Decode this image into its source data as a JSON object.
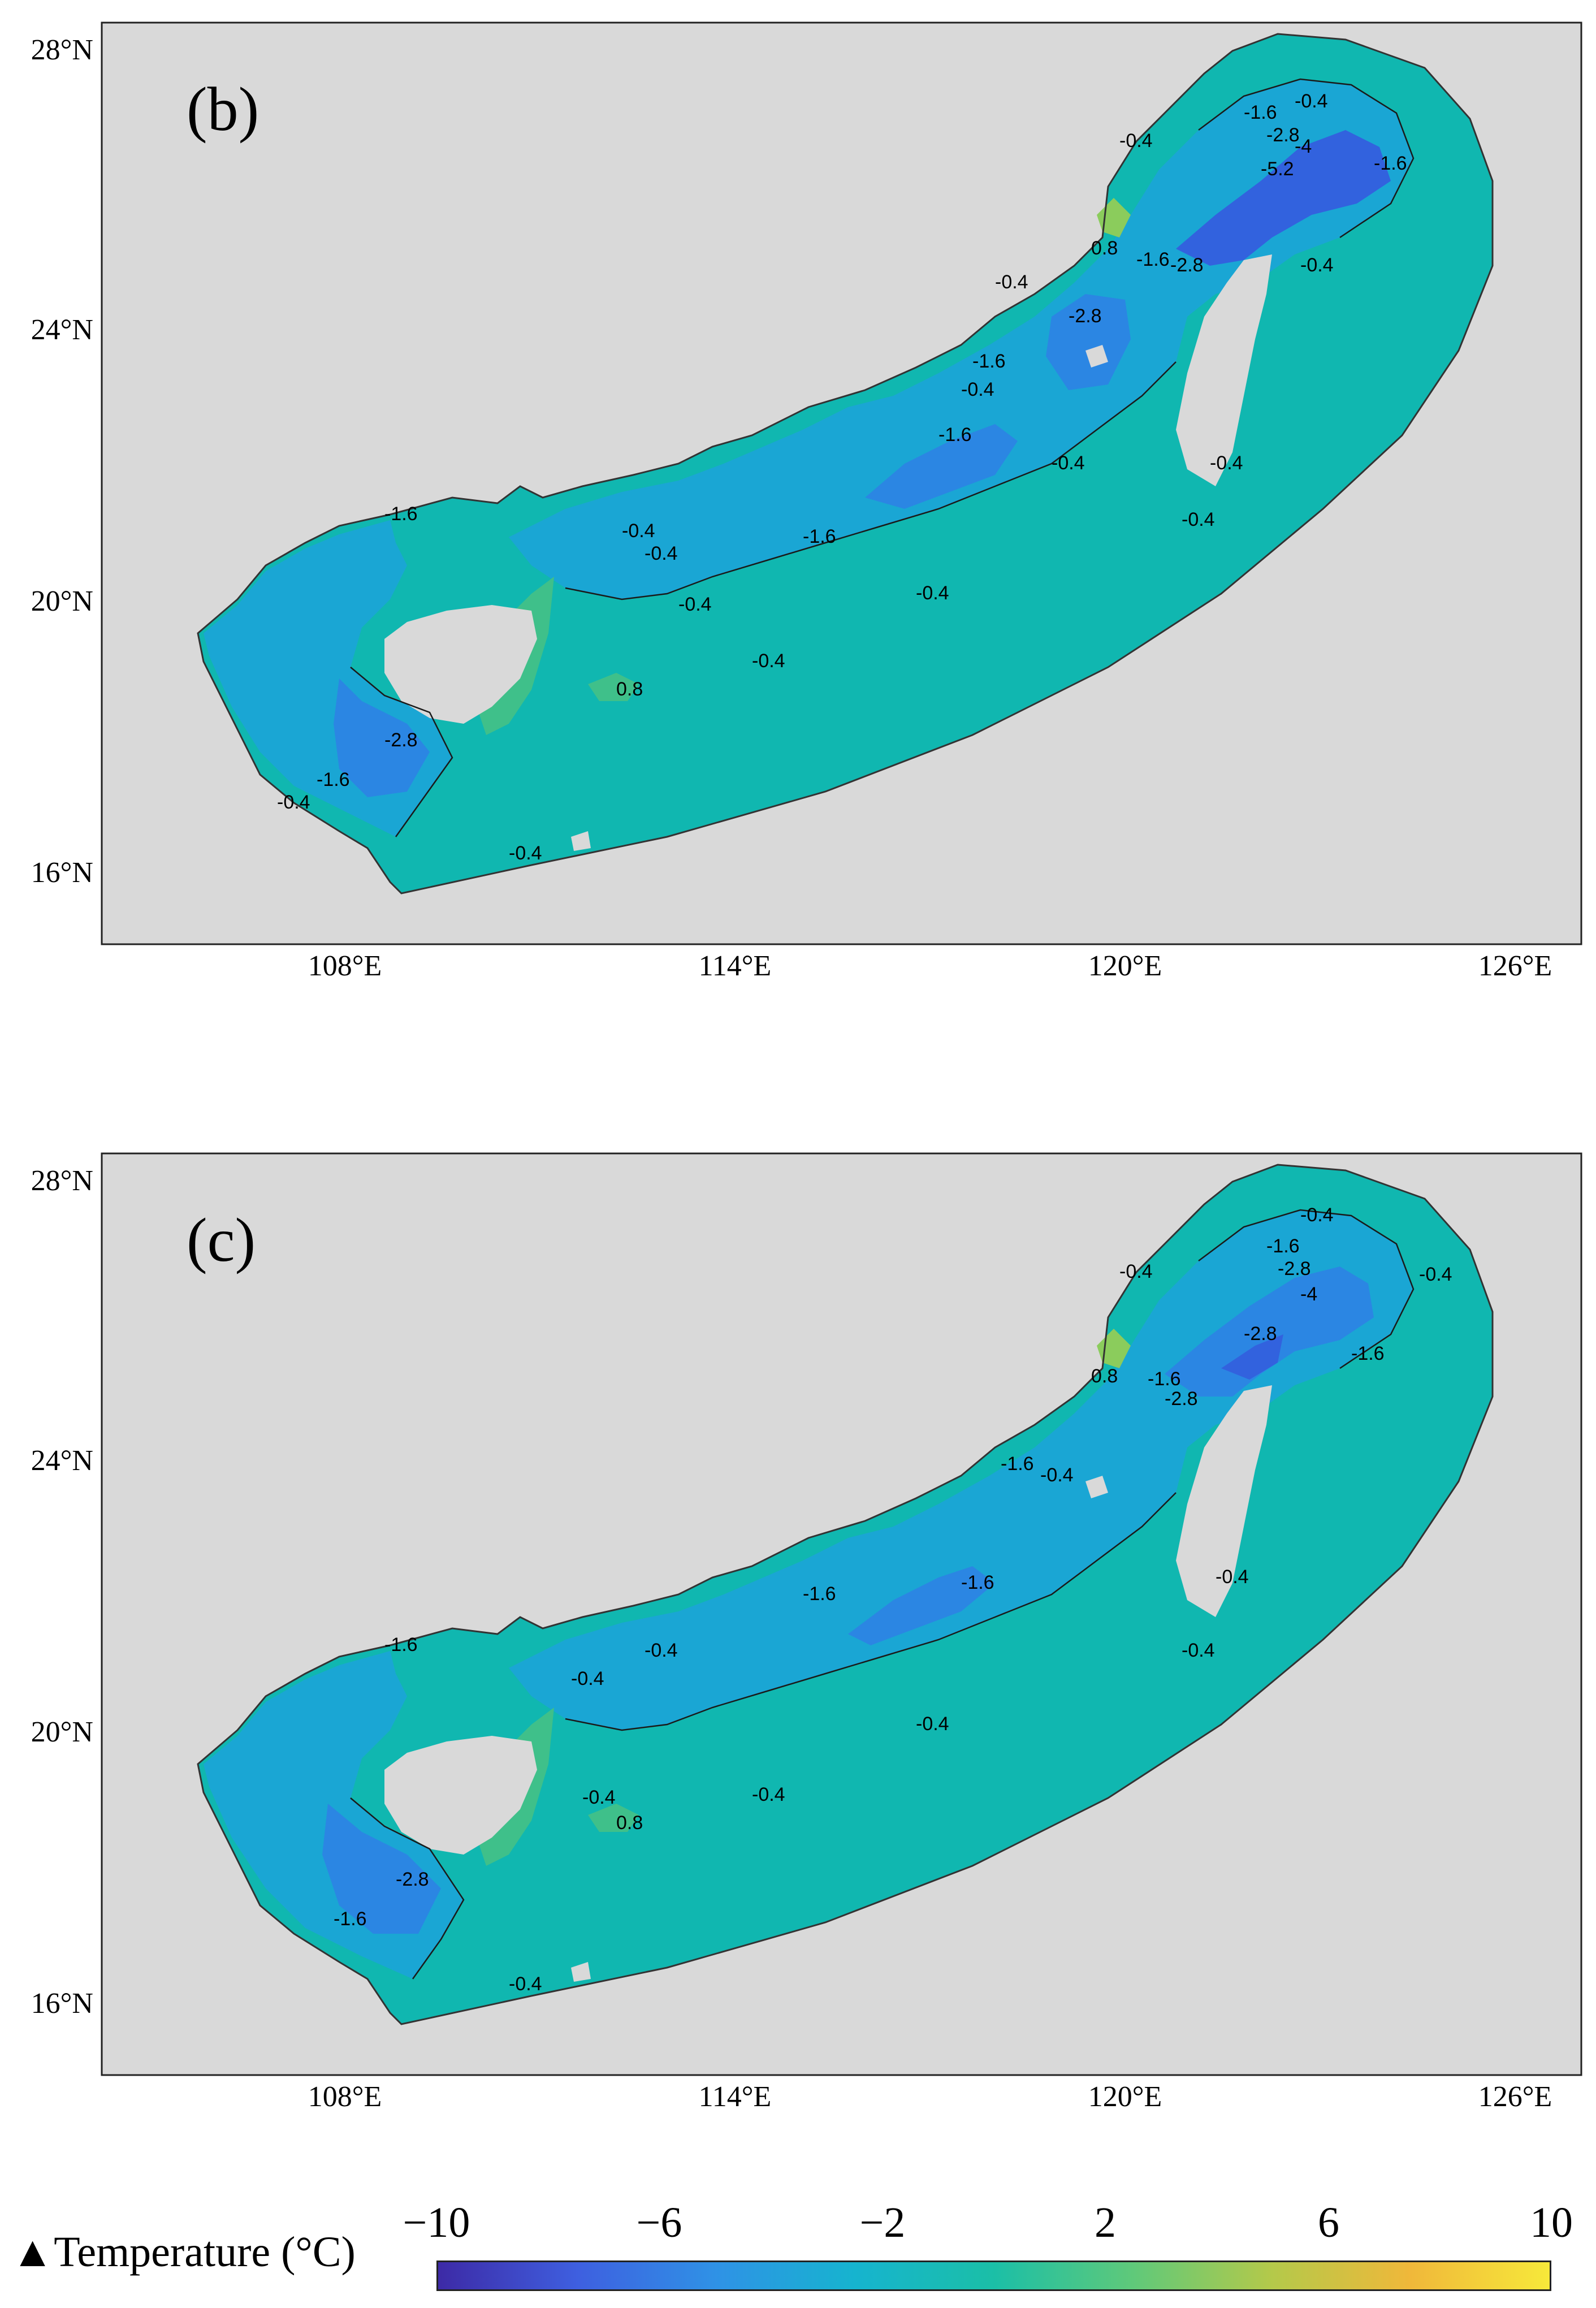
{
  "panels": [
    {
      "id": "b",
      "label": "(b)",
      "x_ticks": [
        "108°E",
        "114°E",
        "120°E",
        "126°E"
      ],
      "y_ticks": [
        "28°N",
        "24°N",
        "20°N",
        "16°N"
      ],
      "contour_labels": [
        "-0.4",
        "-1.6",
        "-2.8",
        "-4",
        "-5.2",
        "0.8",
        "-0.4",
        "-1.6",
        "-2.8",
        "-0.4",
        "-1.6",
        "-0.4",
        "-2.8",
        "-1.6",
        "-0.4",
        "-1.6",
        "-0.4",
        "-0.4",
        "-1.6",
        "-0.4",
        "-0.4",
        "-1.6",
        "-2.8",
        "-0.4",
        "-0.4",
        "0.8",
        "-1.6",
        "-0.4",
        "-0.4",
        "-0.4",
        "-0.4"
      ]
    },
    {
      "id": "c",
      "label": "(c)",
      "x_ticks": [
        "108°E",
        "114°E",
        "120°E",
        "126°E"
      ],
      "y_ticks": [
        "28°N",
        "24°N",
        "20°N",
        "16°N"
      ],
      "contour_labels": [
        "-0.4",
        "-1.6",
        "-2.8",
        "-4",
        "-0.4",
        "0.8",
        "-1.6",
        "-2.8",
        "-1.6",
        "-0.4",
        "-2.8",
        "-1.6",
        "-1.6",
        "-0.4",
        "-1.6",
        "-0.4",
        "-0.4",
        "-0.4",
        "-1.6",
        "-0.4",
        "-2.8",
        "-1.6",
        "-0.4",
        "0.8",
        "-0.4",
        "-0.4",
        "-0.4"
      ]
    }
  ],
  "colorbar": {
    "title": "▲Temperature (°C)",
    "ticks": [
      "−10",
      "−6",
      "−2",
      "2",
      "6",
      "10"
    ],
    "range": [
      -10,
      10
    ],
    "colors": [
      "#3d2aa6",
      "#3e5fe0",
      "#2f92e6",
      "#16b4cf",
      "#1bbfa7",
      "#5fc97a",
      "#b4c94a",
      "#f0b83a",
      "#f7e93a"
    ]
  },
  "colors": {
    "land": "#d9d9d9",
    "base_sea": "#10b7b0",
    "mid_sea": "#1aa6d4",
    "deep_sea": "#2b86e3",
    "darker_sea": "#3262de",
    "warm_sea": "#3fc08a",
    "warmer_sea": "#8bcc5c"
  }
}
